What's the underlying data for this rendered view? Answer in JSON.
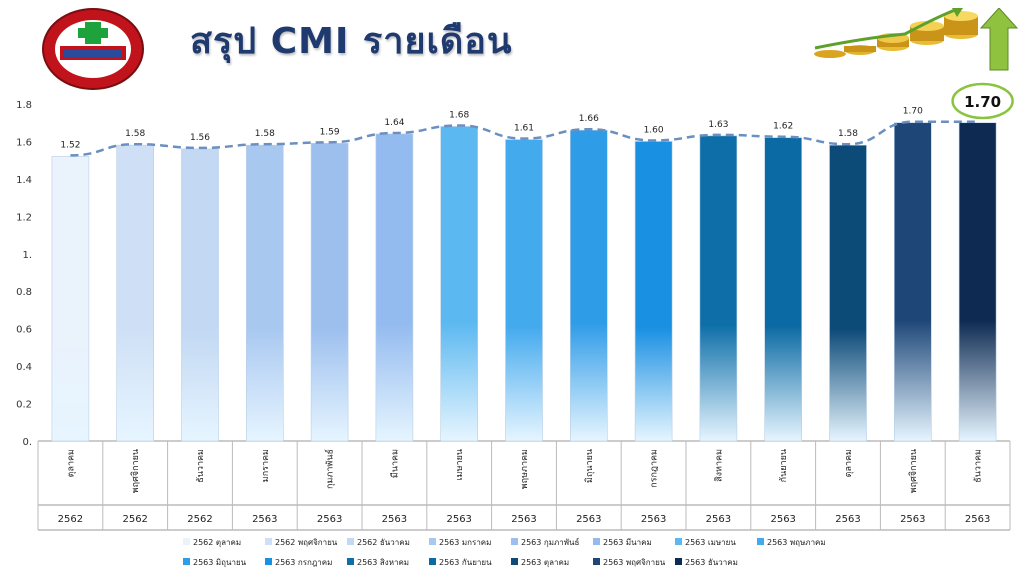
{
  "title": "สรุป CMI รายเดือน",
  "callout": "1.70",
  "chart_data": {
    "type": "bar",
    "ylim": [
      0,
      1.8
    ],
    "y_ticks": [
      "0.",
      "0.2",
      "0.4",
      "0.6",
      "0.8",
      "1.",
      "1.2",
      "1.4",
      "1.6",
      "1.8"
    ],
    "grid": false,
    "legend_position": "bottom",
    "categories": [
      {
        "month": "ตุลาคม",
        "year": "2562"
      },
      {
        "month": "พฤศจิกายน",
        "year": "2562"
      },
      {
        "month": "ธันวาคม",
        "year": "2562"
      },
      {
        "month": "มกราคม",
        "year": "2563"
      },
      {
        "month": "กุมภาพันธ์",
        "year": "2563"
      },
      {
        "month": "มีนาคม",
        "year": "2563"
      },
      {
        "month": "เมษายน",
        "year": "2563"
      },
      {
        "month": "พฤษภาคม",
        "year": "2563"
      },
      {
        "month": "มิถุนายน",
        "year": "2563"
      },
      {
        "month": "กรกฎาคม",
        "year": "2563"
      },
      {
        "month": "สิงหาคม",
        "year": "2563"
      },
      {
        "month": "กันยายน",
        "year": "2563"
      },
      {
        "month": "ตุลาคม",
        "year": "2563"
      },
      {
        "month": "พฤศจิกายน",
        "year": "2563"
      },
      {
        "month": "ธันวาคม",
        "year": "2563"
      }
    ],
    "values": [
      1.52,
      1.58,
      1.56,
      1.58,
      1.59,
      1.64,
      1.68,
      1.61,
      1.66,
      1.6,
      1.63,
      1.62,
      1.58,
      1.7,
      1.7
    ],
    "data_labels": [
      "1.52",
      "1.58",
      "1.56",
      "1.58",
      "1.59",
      "1.64",
      "1.68",
      "1.61",
      "1.66",
      "1.60",
      "1.63",
      "1.62",
      "1.58",
      "1.70",
      ""
    ],
    "colors": [
      "#eaf2fc",
      "#cfe0f6",
      "#c2d8f3",
      "#a9c8f0",
      "#9cbfee",
      "#94bbef",
      "#5bb8f0",
      "#44aaee",
      "#2f9ce8",
      "#1990e2",
      "#0e6fa8",
      "#0b6aa3",
      "#0c4a78",
      "#1e4778",
      "#0e2a52"
    ],
    "legend": [
      "2562 ตุลาคม",
      "2562 พฤศจิกายน",
      "2562 ธันวาคม",
      "2563 มกราคม",
      "2563 กุมภาพันธ์",
      "2563 มีนาคม",
      "2563 เมษายน",
      "2563 พฤษภาคม",
      "2563 มิถุนายน",
      "2563 กรกฎาคม",
      "2563 สิงหาคม",
      "2563 กันยายน",
      "2563 ตุลาคม",
      "2563 พฤศจิกายน",
      "2563 ธันวาคม"
    ]
  }
}
